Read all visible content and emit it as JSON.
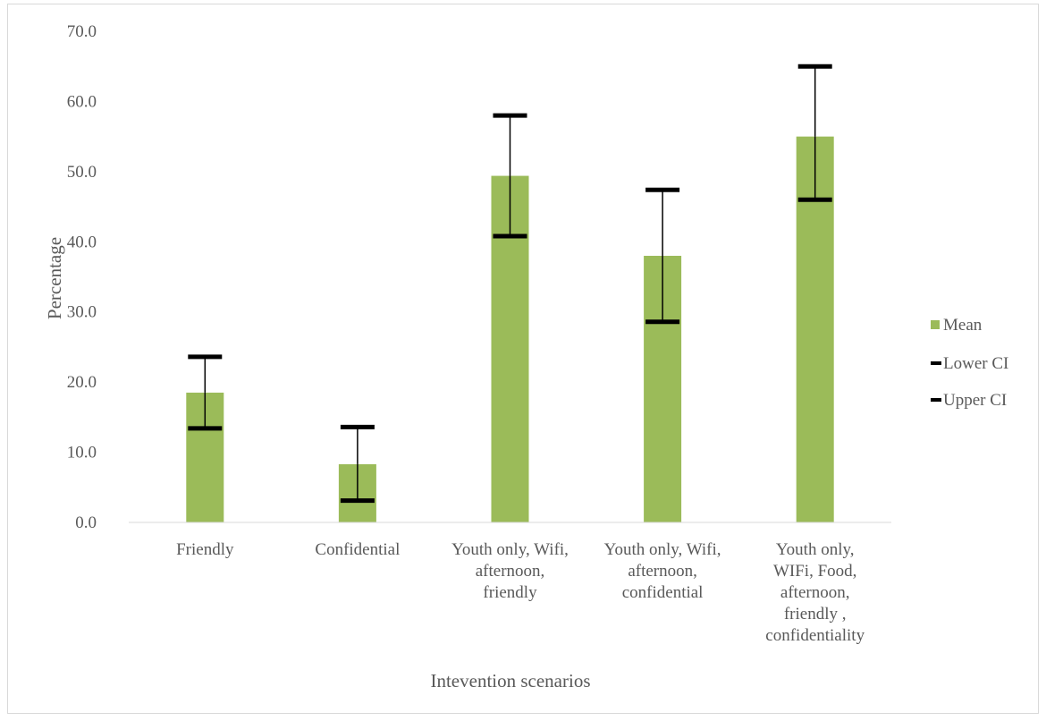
{
  "chart_data": {
    "type": "bar",
    "title": "",
    "xlabel": "Intevention scenarios",
    "ylabel": "Percentage",
    "ylim": [
      0,
      70
    ],
    "yticks": [
      "0.0",
      "10.0",
      "20.0",
      "30.0",
      "40.0",
      "50.0",
      "60.0",
      "70.0"
    ],
    "grid": false,
    "legend_position": "right",
    "categories": [
      [
        "Friendly"
      ],
      [
        "Confidential"
      ],
      [
        "Youth only,  Wifi,",
        "afternoon,",
        "friendly"
      ],
      [
        "Youth only,  Wifi,",
        "afternoon,",
        "confidential"
      ],
      [
        "Youth only,",
        "WIFi, Food,",
        "afternoon,",
        "friendly ,",
        "confidentiality"
      ]
    ],
    "series": [
      {
        "name": "Mean",
        "values": [
          18.5,
          8.3,
          49.4,
          38.0,
          55.0
        ],
        "color": "#9bbb59"
      },
      {
        "name": "Lower CI",
        "values": [
          13.4,
          3.1,
          40.8,
          28.6,
          46.0
        ],
        "color": "#000000"
      },
      {
        "name": "Upper CI",
        "values": [
          23.6,
          13.6,
          58.0,
          47.4,
          65.0
        ],
        "color": "#000000"
      }
    ]
  }
}
